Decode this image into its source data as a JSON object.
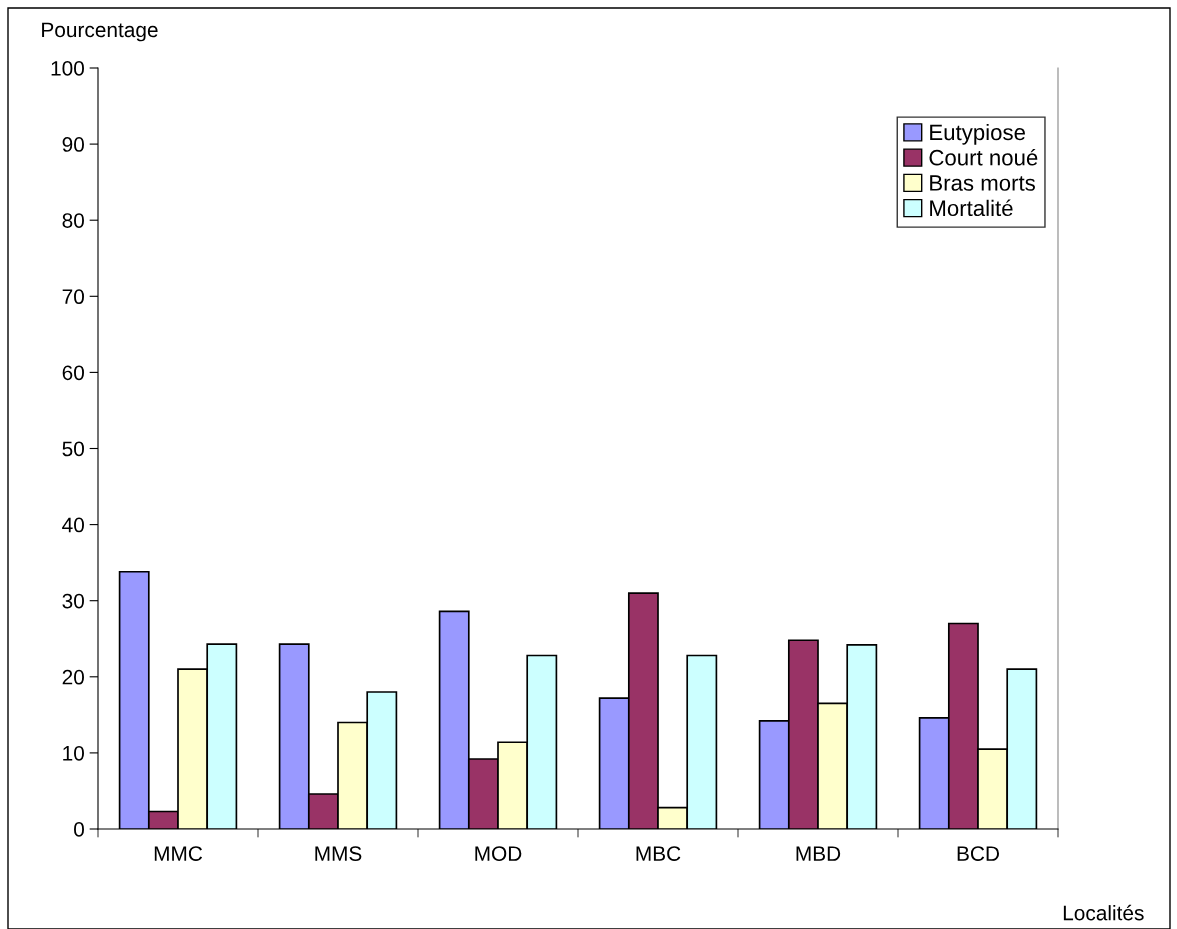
{
  "chart_data": {
    "type": "bar",
    "ylabel": "Pourcentage",
    "xlabel": "Localités",
    "categories": [
      "MMC",
      "MMS",
      "MOD",
      "MBC",
      "MBD",
      "BCD"
    ],
    "series": [
      {
        "name": "Eutypiose",
        "color": "#9999ff",
        "values": [
          33.8,
          24.3,
          28.6,
          17.2,
          14.2,
          14.6
        ]
      },
      {
        "name": "Court noué",
        "color": "#993366",
        "values": [
          2.3,
          4.6,
          9.2,
          31.0,
          24.8,
          27.0
        ]
      },
      {
        "name": "Bras morts",
        "color": "#ffffcc",
        "values": [
          21.0,
          14.0,
          11.4,
          2.8,
          16.5,
          10.5
        ]
      },
      {
        "name": "Mortalité",
        "color": "#ccffff",
        "values": [
          24.3,
          18.0,
          22.8,
          22.8,
          24.2,
          21.0
        ]
      }
    ],
    "ylim": [
      0,
      100
    ],
    "yticks": [
      0,
      10,
      20,
      30,
      40,
      50,
      60,
      70,
      80,
      90,
      100
    ],
    "grid": false,
    "legend": "top right"
  }
}
